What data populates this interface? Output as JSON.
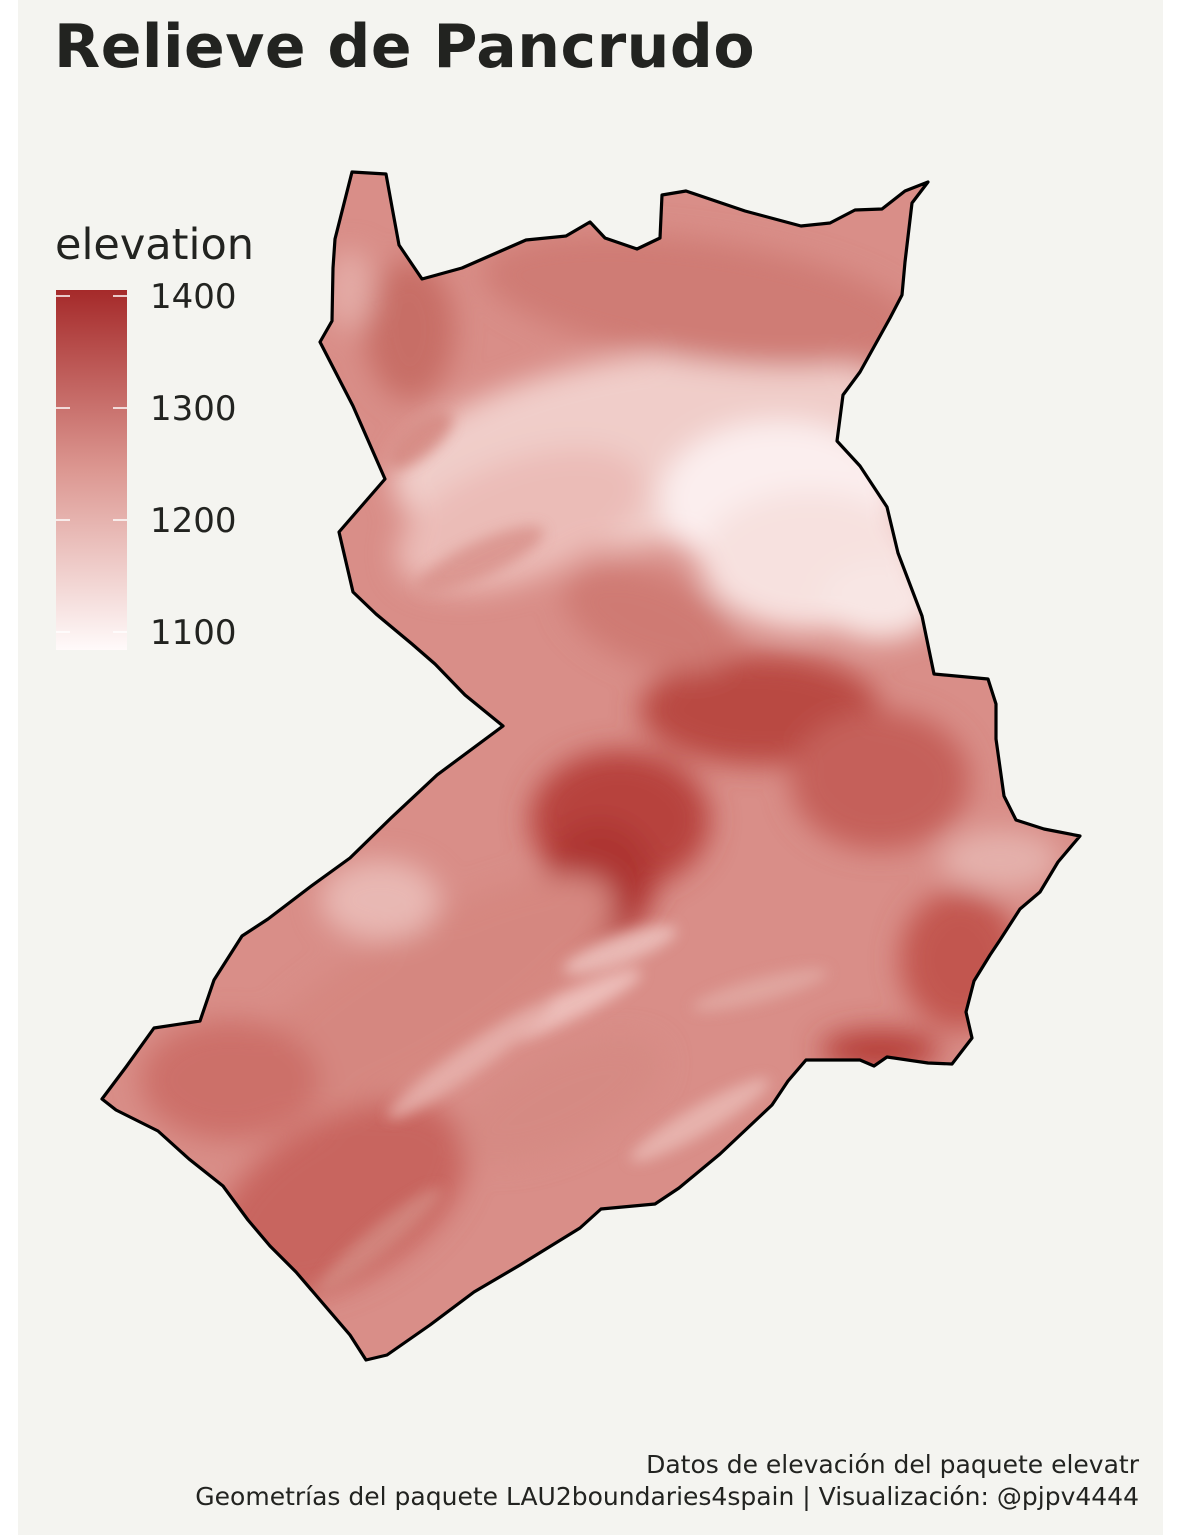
{
  "title": "Relieve de Pancrudo",
  "legend": {
    "title": "elevation",
    "breaks": [
      "1400",
      "1300",
      "1200",
      "1100"
    ],
    "color_low": "#fffafa",
    "color_mid": "#dc9791",
    "color_high": "#a52a2a"
  },
  "caption": {
    "line1": "Datos de elevación del paquete elevatr",
    "line2": "Geometrías del paquete LAU2boundaries4spain | Visualización: @pjpv4444"
  },
  "colors": {
    "background": "#f4f4f0",
    "text": "#222320",
    "border": "#000000"
  }
}
